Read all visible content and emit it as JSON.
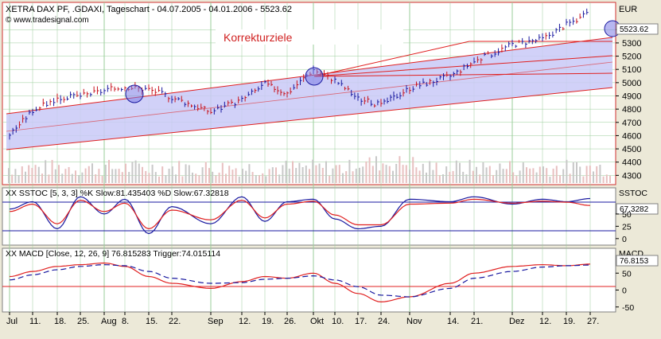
{
  "main_panel": {
    "title": "XETRA DAX PF, .GDAXI, Tageschart - 04.07.2005 - 04.01.2006 - 5523.62",
    "watermark": "© www.tradesignal.com",
    "annotation": "Korrekturziele",
    "currency": "EUR",
    "last_price_label": "5523.62",
    "y_ticks": [
      "5400",
      "5300",
      "5200",
      "5100",
      "5000",
      "4900",
      "4800",
      "4700",
      "4600",
      "4500",
      "4400",
      "4300"
    ]
  },
  "stoch_panel": {
    "title": "XX SSTOC [5, 3, 3] %K Slow:81.435403 %D Slow:67.32818",
    "name": "SSTOC",
    "last_label": "67.3282",
    "y_ticks": [
      "50",
      "25",
      "0"
    ]
  },
  "macd_panel": {
    "title": "XX MACD [Close, 12, 26, 9] 76.815283 Trigger:74.015114",
    "name": "MACD",
    "last_label": "76.8153",
    "y_ticks": [
      "50",
      "0",
      "-50"
    ]
  },
  "x_axis": {
    "labels": [
      "Jul",
      "11.",
      "18.",
      "25.",
      "Aug",
      "8.",
      "15.",
      "22.",
      "Sep",
      "12.",
      "19.",
      "26.",
      "Okt",
      "10.",
      "17.",
      "24.",
      "Nov",
      "14.",
      "21.",
      "Dez",
      "12.",
      "19.",
      "27."
    ]
  },
  "colors": {
    "background": "#ffffff",
    "channel_fill": "#c9c9f7",
    "channel_line": "#e02020",
    "price_up": "#1a1aa0",
    "price_down": "#c8141e",
    "stoch_k": "#1a1aa0",
    "stoch_d": "#e02020",
    "macd": "#e02020",
    "trigger": "#1a1aa0",
    "volume": "#c0c0c0",
    "grid": "#9acd9a"
  },
  "chart_data": [
    {
      "type": "line",
      "title": "XETRA DAX PF, .GDAXI, Tageschart - 04.07.2005 - 04.01.2006 - 5523.62",
      "ylabel": "EUR",
      "ylim": [
        4230,
        5600
      ],
      "x": [
        "Jul",
        "11.",
        "18.",
        "25.",
        "Aug",
        "8.",
        "15.",
        "22.",
        "Sep",
        "12.",
        "19.",
        "26.",
        "Okt",
        "10.",
        "17.",
        "24.",
        "Nov",
        "14.",
        "21.",
        "Dez",
        "12.",
        "19.",
        "27."
      ],
      "series": [
        {
          "values": [
            4610,
            4790,
            4880,
            4900,
            4940,
            4970,
            4950,
            4890,
            4780,
            4870,
            4990,
            4920,
            5100,
            5020,
            4880,
            4830,
            4960,
            5050,
            5160,
            5290,
            5330,
            5440,
            5523.62
          ]
        }
      ]
    },
    {
      "type": "line",
      "title": "XX SSTOC [5, 3, 3] %K Slow:81.435403 %D Slow:67.32818",
      "ylim": [
        -10,
        100
      ],
      "series": [
        {
          "name": "%K Slow",
          "values": [
            60,
            75,
            20,
            85,
            50,
            80,
            10,
            65,
            30,
            85,
            35,
            75,
            80,
            40,
            20,
            25,
            80,
            75,
            85,
            70,
            80,
            75,
            81.44
          ]
        },
        {
          "name": "%D Slow",
          "values": [
            55,
            70,
            30,
            78,
            55,
            72,
            20,
            58,
            38,
            78,
            42,
            70,
            76,
            48,
            28,
            28,
            70,
            72,
            80,
            72,
            76,
            74,
            67.33
          ]
        }
      ]
    },
    {
      "type": "line",
      "title": "XX MACD [Close, 12, 26, 9] 76.815283 Trigger:74.015114",
      "ylim": [
        -60,
        100
      ],
      "series": [
        {
          "name": "MACD",
          "values": [
            40,
            55,
            70,
            75,
            80,
            70,
            40,
            20,
            5,
            25,
            40,
            35,
            50,
            20,
            -10,
            -35,
            -20,
            20,
            50,
            70,
            75,
            72,
            76.82
          ]
        },
        {
          "name": "Trigger",
          "values": [
            30,
            45,
            60,
            70,
            75,
            72,
            55,
            35,
            20,
            22,
            32,
            35,
            42,
            30,
            10,
            -15,
            -20,
            5,
            35,
            55,
            68,
            72,
            74.02
          ]
        }
      ]
    }
  ]
}
